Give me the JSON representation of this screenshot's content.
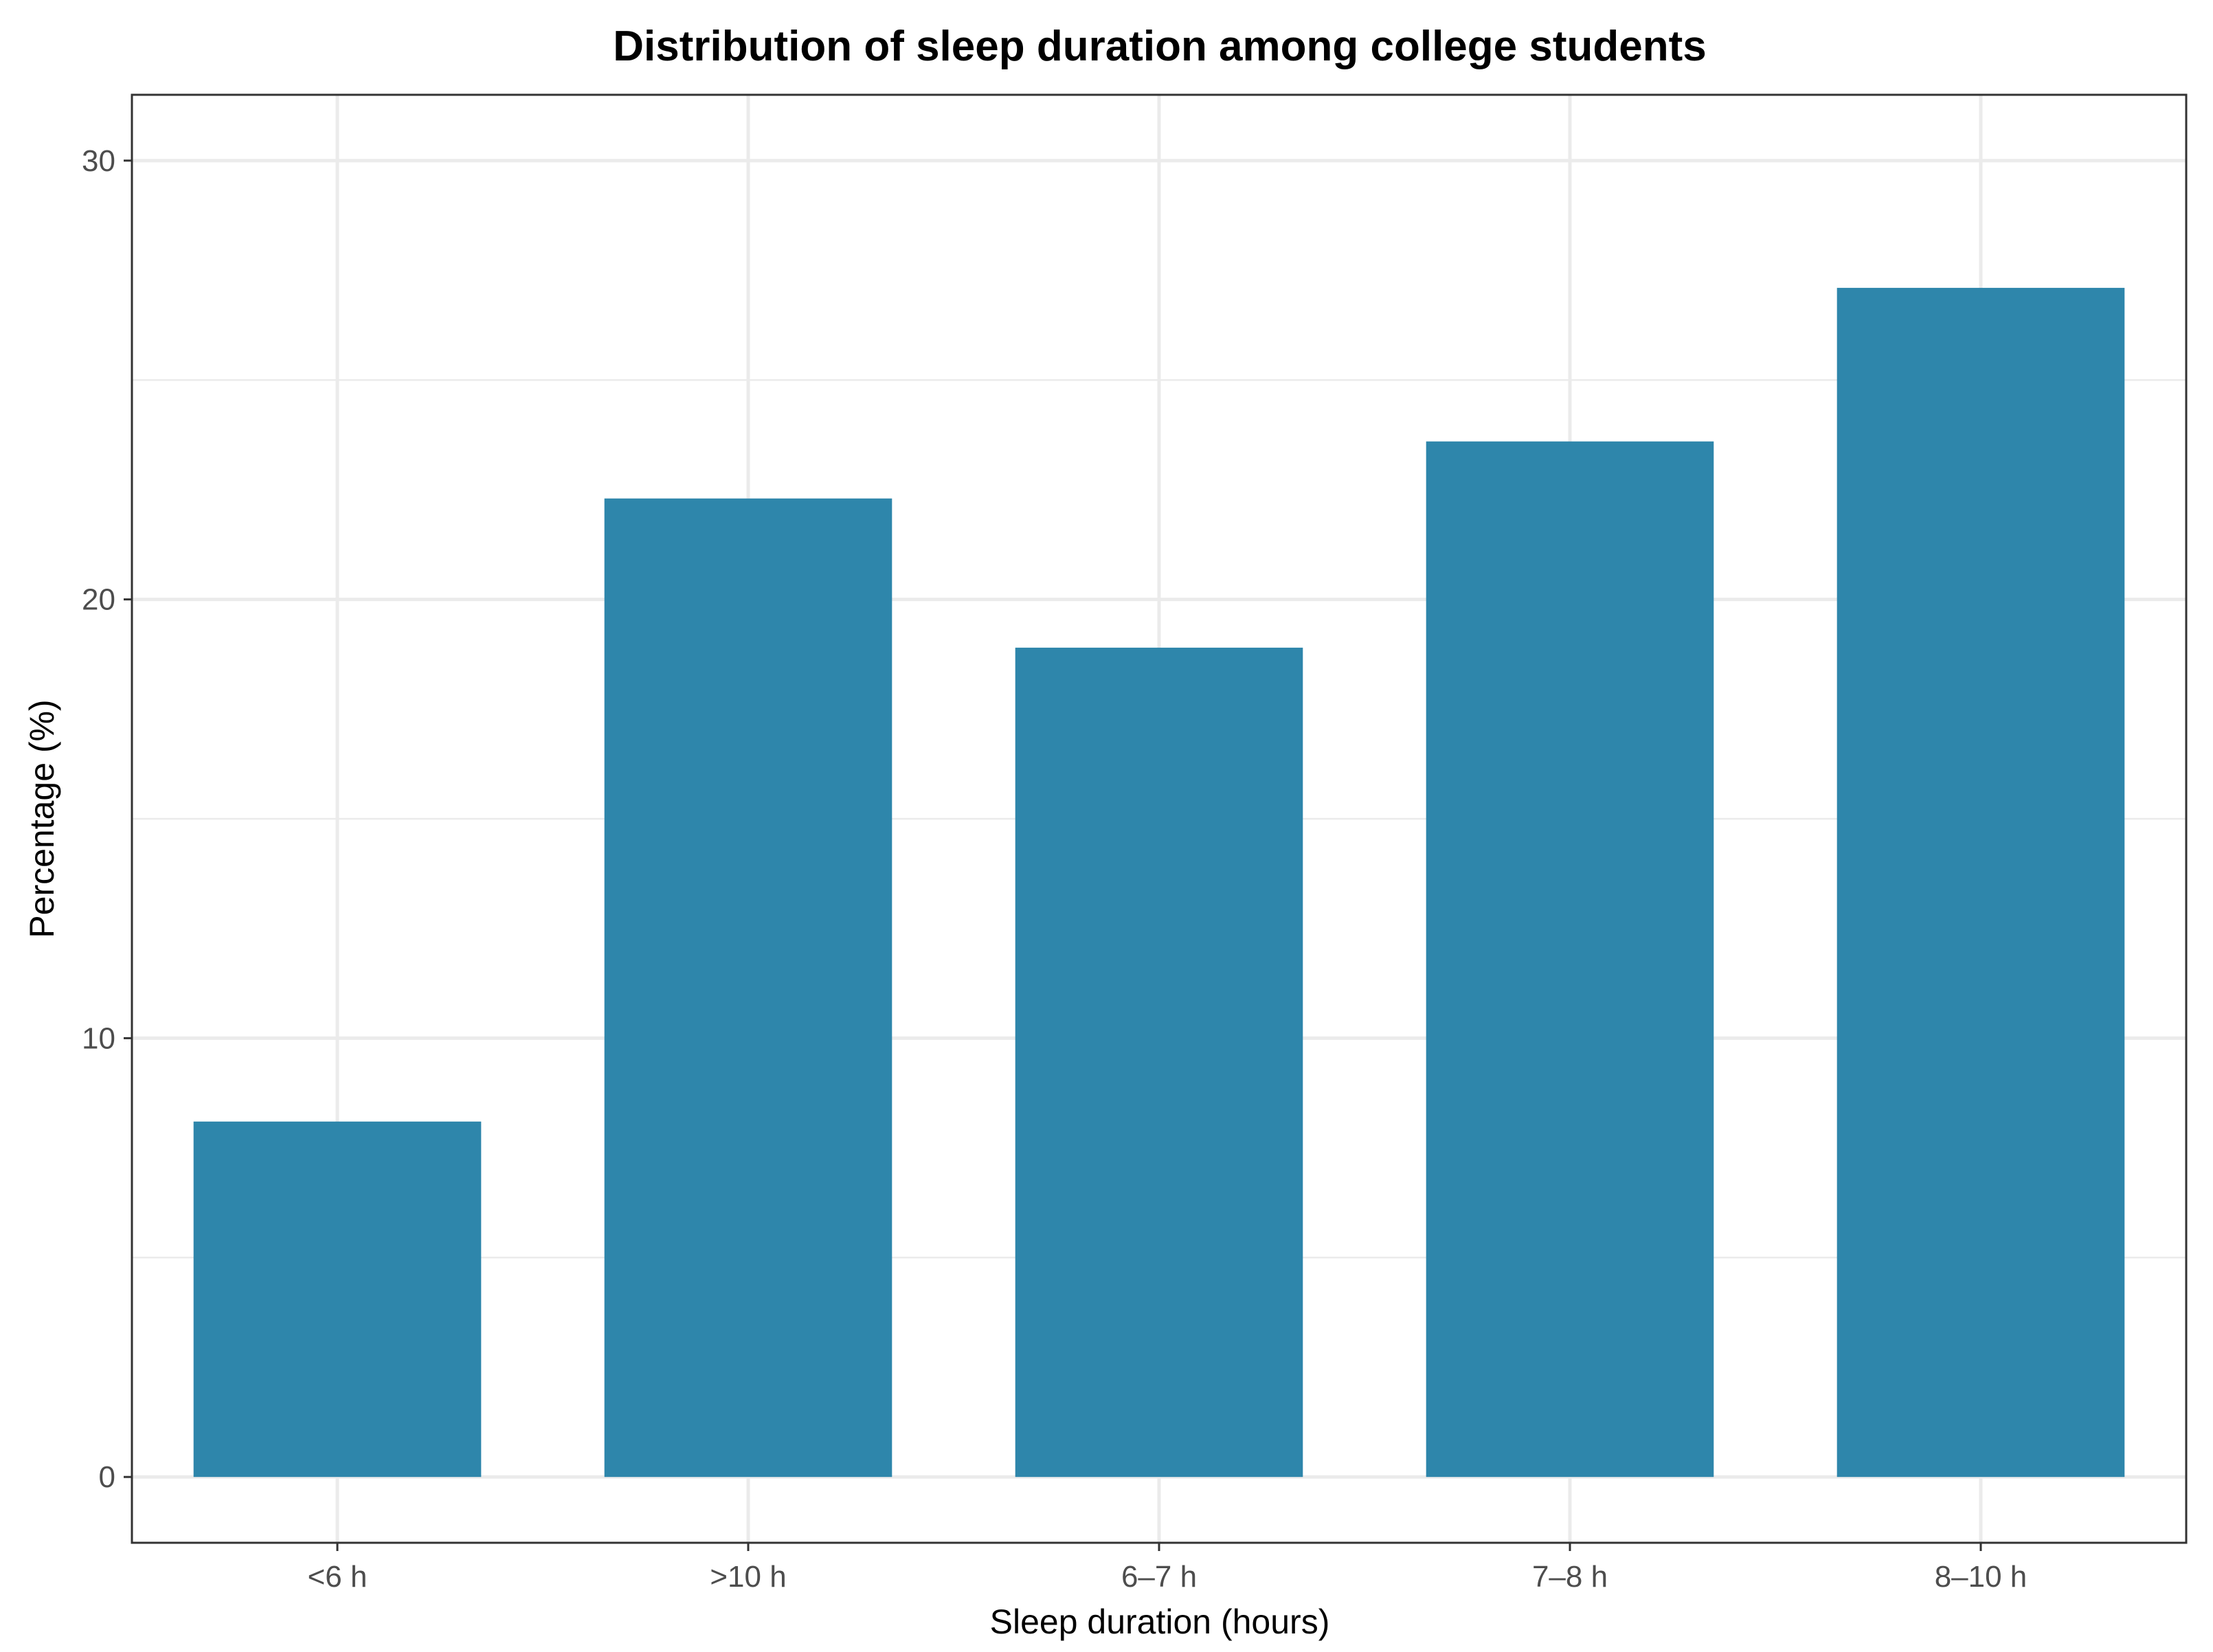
{
  "chart_data": {
    "type": "bar",
    "title": "Distribution of sleep duration among college students",
    "xlabel": "Sleep duration (hours)",
    "ylabel": "Percentage (%)",
    "categories": [
      "<6 h",
      ">10 h",
      "6–7 h",
      "7–8 h",
      "8–10 h"
    ],
    "values": [
      8.1,
      22.3,
      18.9,
      23.6,
      27.1
    ],
    "ylim": [
      -1.5,
      31.5
    ],
    "yticks": [
      0,
      10,
      20,
      30
    ],
    "grid": true,
    "legend": "none",
    "colors": {
      "bar": "#2E86AB",
      "grid": "#EBEBEB",
      "panel_border": "#333333",
      "tick": "#4D4D4D"
    }
  }
}
